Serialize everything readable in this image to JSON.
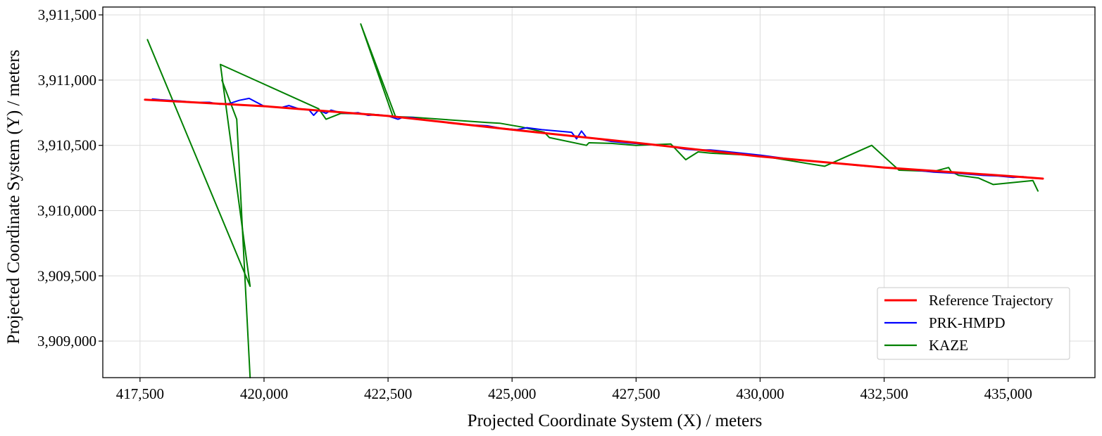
{
  "chart_data": {
    "type": "line",
    "title": "",
    "xlabel": "Projected Coordinate System (X) / meters",
    "ylabel": "Projected Coordinate System (Y) / meters",
    "xlim": [
      416750,
      436750
    ],
    "ylim": [
      3908720,
      3911560
    ],
    "x_ticks": [
      417500,
      420000,
      422500,
      425000,
      427500,
      430000,
      432500,
      435000
    ],
    "x_tick_labels": [
      "417,500",
      "420,000",
      "422,500",
      "425,000",
      "427,500",
      "430,000",
      "432,500",
      "435,000"
    ],
    "y_ticks": [
      3909000,
      3909500,
      3910000,
      3910500,
      3911000,
      3911500
    ],
    "y_tick_labels": [
      "3,909,000",
      "3,909,500",
      "3,910,000",
      "3,910,500",
      "3,911,000",
      "3,911,500"
    ],
    "grid": true,
    "legend_position": "lower-right",
    "series": [
      {
        "name": "Reference Trajectory",
        "color": "#ff0000",
        "x": [
          417600,
          420000,
          422500,
          425000,
          427500,
          430000,
          432500,
          435000,
          435700
        ],
        "y": [
          3910850,
          3910800,
          3910725,
          3910620,
          3910520,
          3910415,
          3910330,
          3910265,
          3910245
        ]
      },
      {
        "name": "PRK-HMPD",
        "color": "#0000ff",
        "x": [
          417750,
          417900,
          418100,
          418300,
          418600,
          418900,
          419100,
          419300,
          419500,
          419700,
          419850,
          420000,
          420200,
          420350,
          420500,
          420700,
          420900,
          421000,
          421100,
          421250,
          421350,
          421450,
          421550,
          421700,
          421900,
          422100,
          422300,
          422500,
          422700,
          422800,
          423000,
          423300,
          423600,
          424000,
          424500,
          424800,
          425100,
          425300,
          425600,
          425900,
          426200,
          426300,
          426400,
          426500,
          426600,
          426800,
          427000,
          427300,
          427800,
          428200,
          428500,
          428700,
          429000,
          429500,
          430000,
          430500,
          431000,
          431500,
          432000,
          432500,
          433000,
          433500,
          434000,
          434500,
          434800,
          435100,
          435300,
          435500
        ],
        "y": [
          3910855,
          3910850,
          3910845,
          3910840,
          3910830,
          3910830,
          3910815,
          3910820,
          3910845,
          3910860,
          3910830,
          3910800,
          3910795,
          3910790,
          3910805,
          3910780,
          3910775,
          3910730,
          3910770,
          3910745,
          3910770,
          3910760,
          3910750,
          3910745,
          3910750,
          3910730,
          3910735,
          3910725,
          3910700,
          3910715,
          3910712,
          3910690,
          3910680,
          3910660,
          3910650,
          3910630,
          3910620,
          3910635,
          3910620,
          3910610,
          3910600,
          3910550,
          3910610,
          3910560,
          3910555,
          3910545,
          3910530,
          3910520,
          3910505,
          3910490,
          3910470,
          3910465,
          3910465,
          3910445,
          3910425,
          3910400,
          3910380,
          3910365,
          3910345,
          3910330,
          3910315,
          3910295,
          3910285,
          3910270,
          3910265,
          3910255,
          3910260,
          3910250
        ]
      },
      {
        "name": "KAZE",
        "color": "#008000",
        "x": [
          417650,
          419720,
          419120,
          421100,
          421250,
          421550,
          422150,
          422600,
          421950,
          422650,
          423000,
          424500,
          424750,
          425200,
          425650,
          425750,
          426500,
          426550,
          427000,
          427500,
          428200,
          428500,
          428750,
          429000,
          430000,
          431300,
          432250,
          432800,
          433500,
          433800,
          433850,
          434000,
          434400,
          434700,
          435500,
          435600
        ],
        "y": [
          3911310,
          3909420,
          3911120,
          3910780,
          3910700,
          3910745,
          3910740,
          3910720,
          3911430,
          3910720,
          3910715,
          3910675,
          3910670,
          3910640,
          3910600,
          3910560,
          3910500,
          3910520,
          3910515,
          3910500,
          3910510,
          3910390,
          3910450,
          3910440,
          3910420,
          3910340,
          3910500,
          3910310,
          3910300,
          3910330,
          3910300,
          3910270,
          3910250,
          3910200,
          3910230,
          3910150
        ]
      },
      {
        "name": "",
        "color": "#008000",
        "x": [
          419150,
          419450,
          419720
        ],
        "y": [
          3911000,
          3910700,
          3908720
        ]
      }
    ]
  }
}
